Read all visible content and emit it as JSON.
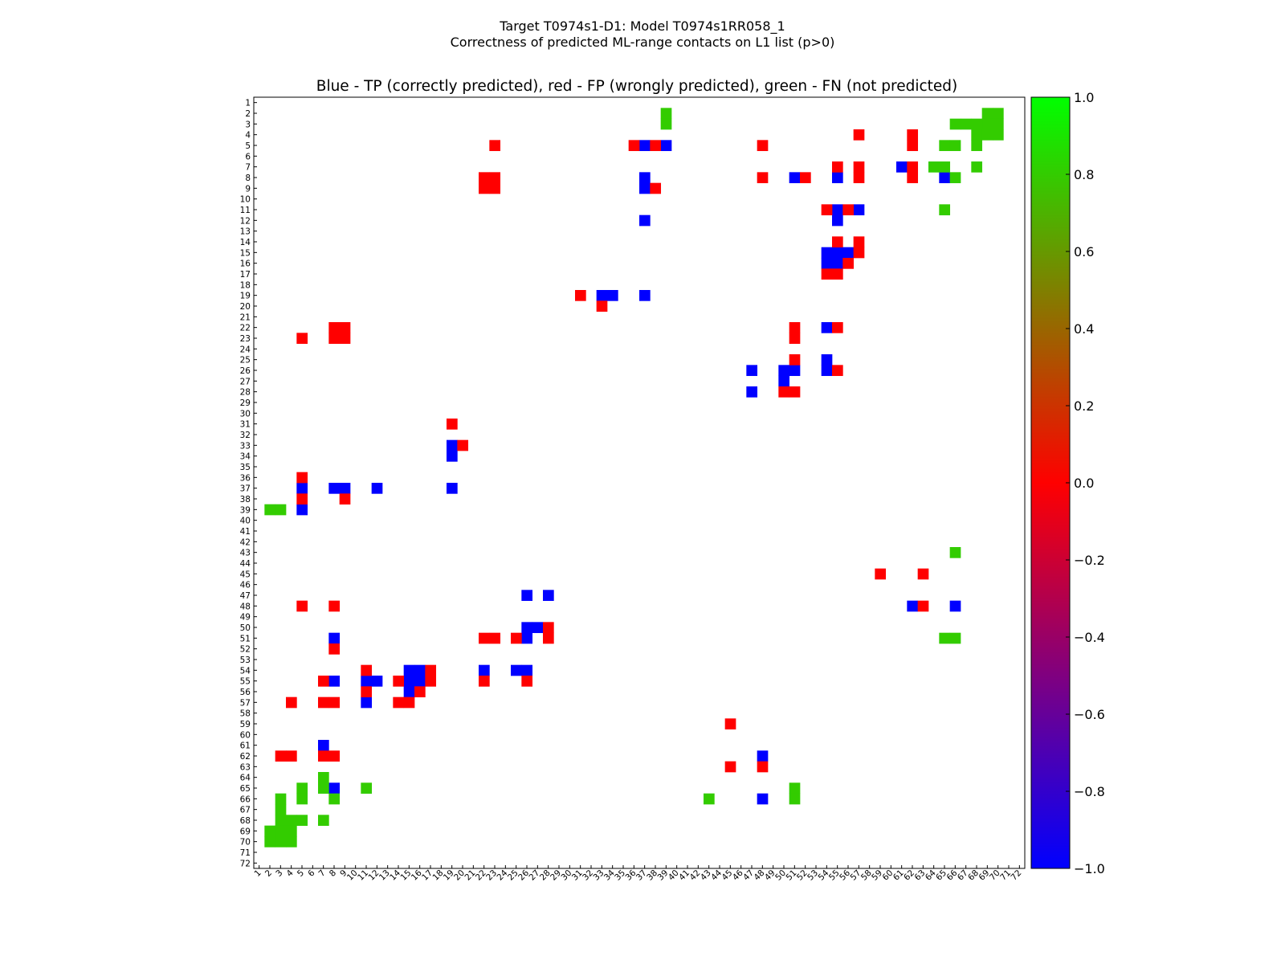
{
  "chart_data": {
    "type": "heatmap",
    "figure_title_line1": "Target T0974s1-D1: Model T0974s1RR058_1",
    "figure_title_line2": "Correctness of predicted ML-range contacts on L1 list (p>0)",
    "title": "Blue - TP (correctly predicted), red - FP (wrongly predicted), green - FN (not predicted)",
    "x_range": [
      1,
      72
    ],
    "y_range": [
      1,
      72
    ],
    "x_tick_labels": [
      "1",
      "2",
      "3",
      "4",
      "5",
      "6",
      "7",
      "8",
      "9",
      "10",
      "11",
      "12",
      "13",
      "14",
      "15",
      "16",
      "17",
      "18",
      "19",
      "20",
      "21",
      "22",
      "23",
      "24",
      "25",
      "26",
      "27",
      "28",
      "29",
      "30",
      "31",
      "32",
      "33",
      "34",
      "35",
      "36",
      "37",
      "38",
      "39",
      "40",
      "41",
      "42",
      "43",
      "44",
      "45",
      "46",
      "47",
      "48",
      "49",
      "50",
      "51",
      "52",
      "53",
      "54",
      "55",
      "56",
      "57",
      "58",
      "59",
      "60",
      "61",
      "62",
      "63",
      "64",
      "65",
      "66",
      "67",
      "68",
      "69",
      "70",
      "71",
      "72"
    ],
    "y_tick_labels": [
      "1",
      "2",
      "3",
      "4",
      "5",
      "6",
      "7",
      "8",
      "9",
      "10",
      "11",
      "12",
      "13",
      "14",
      "15",
      "16",
      "17",
      "18",
      "19",
      "20",
      "21",
      "22",
      "23",
      "24",
      "25",
      "26",
      "27",
      "28",
      "29",
      "30",
      "31",
      "32",
      "33",
      "34",
      "35",
      "36",
      "37",
      "38",
      "39",
      "40",
      "41",
      "42",
      "43",
      "44",
      "45",
      "46",
      "47",
      "48",
      "49",
      "50",
      "51",
      "52",
      "53",
      "54",
      "55",
      "56",
      "57",
      "58",
      "59",
      "60",
      "61",
      "62",
      "63",
      "64",
      "65",
      "66",
      "67",
      "68",
      "69",
      "70",
      "71",
      "72"
    ],
    "colorbar": {
      "min": -1.0,
      "max": 1.0,
      "tick_values": [
        1.0,
        0.8,
        0.6,
        0.4,
        0.2,
        0.0,
        -0.2,
        -0.4,
        -0.6,
        -0.8,
        -1.0
      ],
      "tick_labels": [
        "1.0",
        "0.8",
        "0.6",
        "0.4",
        "0.2",
        "0.0",
        "−0.2",
        "−0.4",
        "−0.6",
        "−0.8",
        "−1.0"
      ],
      "stops": [
        {
          "value": -1.0,
          "color": "#0000ff"
        },
        {
          "value": 0.0,
          "color": "#ff0000"
        },
        {
          "value": 1.0,
          "color": "#00ff00"
        }
      ]
    },
    "categories": {
      "TP": {
        "value": -1.0,
        "color": "#0000ff"
      },
      "FP": {
        "value": 0.0,
        "color": "#ff0000"
      },
      "FN": {
        "value": 0.8,
        "color": "#33cc00"
      }
    },
    "cells": {
      "TP": [
        [
          37,
          5
        ],
        [
          39,
          5
        ],
        [
          37,
          8
        ],
        [
          51,
          8
        ],
        [
          55,
          8
        ],
        [
          65,
          8
        ],
        [
          37,
          9
        ],
        [
          61,
          7
        ],
        [
          55,
          11
        ],
        [
          57,
          11
        ],
        [
          55,
          12
        ],
        [
          37,
          12
        ],
        [
          54,
          15
        ],
        [
          55,
          15
        ],
        [
          56,
          15
        ],
        [
          54,
          16
        ],
        [
          55,
          16
        ],
        [
          33,
          19
        ],
        [
          34,
          19
        ],
        [
          37,
          19
        ],
        [
          54,
          22
        ],
        [
          54,
          25
        ],
        [
          54,
          26
        ],
        [
          47,
          26
        ],
        [
          50,
          26
        ],
        [
          51,
          26
        ],
        [
          50,
          27
        ],
        [
          47,
          28
        ],
        [
          19,
          33
        ],
        [
          19,
          34
        ],
        [
          5,
          37
        ],
        [
          8,
          37
        ],
        [
          9,
          37
        ],
        [
          12,
          37
        ],
        [
          19,
          37
        ],
        [
          5,
          39
        ],
        [
          26,
          47
        ],
        [
          28,
          47
        ],
        [
          62,
          48
        ],
        [
          66,
          48
        ],
        [
          26,
          50
        ],
        [
          27,
          50
        ],
        [
          26,
          51
        ],
        [
          8,
          51
        ],
        [
          15,
          54
        ],
        [
          16,
          54
        ],
        [
          22,
          54
        ],
        [
          25,
          54
        ],
        [
          26,
          54
        ],
        [
          8,
          55
        ],
        [
          11,
          55
        ],
        [
          12,
          55
        ],
        [
          15,
          55
        ],
        [
          16,
          55
        ],
        [
          15,
          56
        ],
        [
          11,
          57
        ],
        [
          7,
          61
        ],
        [
          48,
          62
        ],
        [
          8,
          65
        ],
        [
          48,
          66
        ]
      ],
      "FP": [
        [
          23,
          5
        ],
        [
          36,
          5
        ],
        [
          38,
          5
        ],
        [
          48,
          5
        ],
        [
          57,
          4
        ],
        [
          62,
          4
        ],
        [
          62,
          5
        ],
        [
          55,
          7
        ],
        [
          57,
          7
        ],
        [
          62,
          7
        ],
        [
          48,
          8
        ],
        [
          52,
          8
        ],
        [
          57,
          8
        ],
        [
          62,
          8
        ],
        [
          22,
          8
        ],
        [
          23,
          8
        ],
        [
          22,
          9
        ],
        [
          23,
          9
        ],
        [
          38,
          9
        ],
        [
          54,
          11
        ],
        [
          56,
          11
        ],
        [
          55,
          14
        ],
        [
          57,
          14
        ],
        [
          57,
          15
        ],
        [
          56,
          16
        ],
        [
          54,
          17
        ],
        [
          55,
          17
        ],
        [
          31,
          19
        ],
        [
          33,
          20
        ],
        [
          55,
          22
        ],
        [
          8,
          22
        ],
        [
          9,
          22
        ],
        [
          8,
          23
        ],
        [
          9,
          23
        ],
        [
          5,
          23
        ],
        [
          51,
          22
        ],
        [
          51,
          23
        ],
        [
          51,
          25
        ],
        [
          55,
          26
        ],
        [
          50,
          28
        ],
        [
          51,
          28
        ],
        [
          19,
          31
        ],
        [
          20,
          33
        ],
        [
          5,
          36
        ],
        [
          5,
          38
        ],
        [
          9,
          38
        ],
        [
          59,
          45
        ],
        [
          63,
          45
        ],
        [
          5,
          48
        ],
        [
          8,
          48
        ],
        [
          63,
          48
        ],
        [
          28,
          50
        ],
        [
          22,
          51
        ],
        [
          23,
          51
        ],
        [
          25,
          51
        ],
        [
          28,
          51
        ],
        [
          8,
          52
        ],
        [
          11,
          54
        ],
        [
          17,
          54
        ],
        [
          7,
          55
        ],
        [
          14,
          55
        ],
        [
          17,
          55
        ],
        [
          22,
          55
        ],
        [
          26,
          55
        ],
        [
          11,
          56
        ],
        [
          16,
          56
        ],
        [
          4,
          57
        ],
        [
          7,
          57
        ],
        [
          8,
          57
        ],
        [
          14,
          57
        ],
        [
          15,
          57
        ],
        [
          45,
          59
        ],
        [
          3,
          62
        ],
        [
          4,
          62
        ],
        [
          7,
          62
        ],
        [
          8,
          62
        ],
        [
          45,
          63
        ],
        [
          48,
          63
        ]
      ],
      "FN": [
        [
          39,
          2
        ],
        [
          39,
          3
        ],
        [
          69,
          2
        ],
        [
          70,
          2
        ],
        [
          69,
          3
        ],
        [
          70,
          3
        ],
        [
          66,
          3
        ],
        [
          67,
          3
        ],
        [
          68,
          3
        ],
        [
          68,
          4
        ],
        [
          69,
          4
        ],
        [
          70,
          4
        ],
        [
          65,
          5
        ],
        [
          66,
          5
        ],
        [
          68,
          5
        ],
        [
          64,
          7
        ],
        [
          65,
          7
        ],
        [
          68,
          7
        ],
        [
          66,
          8
        ],
        [
          65,
          11
        ],
        [
          66,
          43
        ],
        [
          65,
          51
        ],
        [
          66,
          51
        ],
        [
          2,
          39
        ],
        [
          3,
          39
        ],
        [
          7,
          64
        ],
        [
          5,
          65
        ],
        [
          7,
          65
        ],
        [
          11,
          65
        ],
        [
          51,
          65
        ],
        [
          3,
          66
        ],
        [
          5,
          66
        ],
        [
          8,
          66
        ],
        [
          43,
          66
        ],
        [
          51,
          66
        ],
        [
          3,
          67
        ],
        [
          3,
          68
        ],
        [
          4,
          68
        ],
        [
          5,
          68
        ],
        [
          7,
          68
        ],
        [
          2,
          69
        ],
        [
          3,
          69
        ],
        [
          4,
          69
        ],
        [
          2,
          70
        ],
        [
          3,
          70
        ],
        [
          4,
          70
        ]
      ]
    }
  }
}
